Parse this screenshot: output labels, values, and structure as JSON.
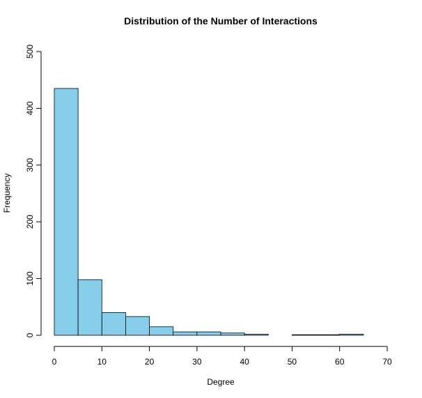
{
  "chart_data": {
    "type": "bar",
    "title": "Distribution of the Number of Interactions",
    "xlabel": "Degree",
    "ylabel": "Frequency",
    "xlim": [
      0,
      70
    ],
    "ylim": [
      0,
      500
    ],
    "x_ticks": [
      0,
      10,
      20,
      30,
      40,
      50,
      60,
      70
    ],
    "y_ticks": [
      0,
      100,
      200,
      300,
      400,
      500
    ],
    "bin_edges": [
      0,
      5,
      10,
      15,
      20,
      25,
      30,
      35,
      40,
      45,
      50,
      55,
      60,
      65
    ],
    "values": [
      435,
      98,
      40,
      33,
      15,
      6,
      6,
      4,
      2,
      0,
      1,
      1,
      2
    ],
    "bar_color": "#87CEEB",
    "bar_edge_color": "#000000",
    "grid": false,
    "legend": "none"
  }
}
